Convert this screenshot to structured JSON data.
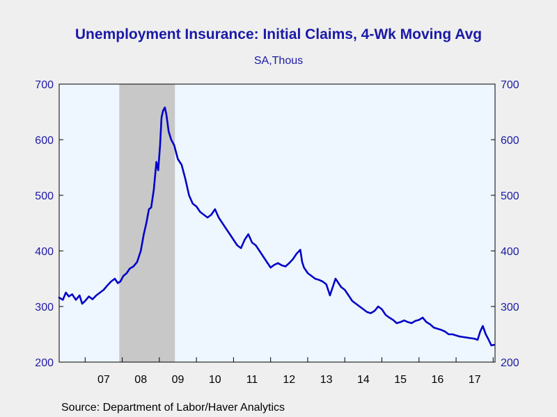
{
  "title": "Unemployment Insurance: Initial Claims, 4-Wk Moving Avg",
  "subtitle": "SA,Thous",
  "source": "Source:  Department of Labor/Haver Analytics",
  "colors": {
    "line": "#0000c8",
    "plot_bg": "#eef6ff",
    "recession": "#c8c8c8",
    "axis_text": "#1a1aa6"
  },
  "chart_data": {
    "type": "line",
    "title": "Unemployment Insurance: Initial Claims, 4-Wk Moving Avg",
    "subtitle": "SA,Thous",
    "ylim": [
      200,
      700
    ],
    "yticks": [
      200,
      300,
      400,
      500,
      600,
      700
    ],
    "y_axes": "left-and-right",
    "xlim": [
      2006.3,
      2018.05
    ],
    "xtick_labels": [
      "07",
      "08",
      "09",
      "10",
      "11",
      "12",
      "13",
      "14",
      "15",
      "16",
      "17"
    ],
    "xtick_label_years": [
      2007,
      2008,
      2009,
      2010,
      2011,
      2012,
      2013,
      2014,
      2015,
      2016,
      2017
    ],
    "grid": false,
    "legend": "none",
    "shaded_regions": [
      {
        "label": "recession",
        "start": 2007.92,
        "end": 2009.42
      }
    ],
    "series": [
      {
        "x": [
          2006.3,
          2006.4,
          2006.48,
          2006.56,
          2006.65,
          2006.75,
          2006.85,
          2006.92,
          2007.0,
          2007.1,
          2007.2,
          2007.3,
          2007.4,
          2007.5,
          2007.6,
          2007.7,
          2007.8,
          2007.88,
          2007.95,
          2008.03,
          2008.12,
          2008.2,
          2008.3,
          2008.4,
          2008.5,
          2008.58,
          2008.65,
          2008.72,
          2008.78,
          2008.85,
          2008.92,
          2008.97,
          2009.02,
          2009.06,
          2009.1,
          2009.15,
          2009.19,
          2009.25,
          2009.32,
          2009.4,
          2009.5,
          2009.6,
          2009.7,
          2009.8,
          2009.9,
          2010.0,
          2010.1,
          2010.2,
          2010.3,
          2010.4,
          2010.5,
          2010.6,
          2010.7,
          2010.8,
          2010.9,
          2011.0,
          2011.1,
          2011.2,
          2011.3,
          2011.4,
          2011.5,
          2011.6,
          2011.7,
          2011.8,
          2011.9,
          2012.0,
          2012.1,
          2012.2,
          2012.3,
          2012.4,
          2012.5,
          2012.6,
          2012.7,
          2012.8,
          2012.85,
          2012.9,
          2013.0,
          2013.1,
          2013.2,
          2013.3,
          2013.4,
          2013.5,
          2013.6,
          2013.75,
          2013.8,
          2013.9,
          2014.0,
          2014.1,
          2014.2,
          2014.3,
          2014.4,
          2014.5,
          2014.6,
          2014.7,
          2014.8,
          2014.9,
          2015.0,
          2015.1,
          2015.2,
          2015.3,
          2015.4,
          2015.5,
          2015.6,
          2015.7,
          2015.8,
          2015.9,
          2016.0,
          2016.1,
          2016.2,
          2016.3,
          2016.4,
          2016.5,
          2016.6,
          2016.7,
          2016.8,
          2016.9,
          2017.0,
          2017.1,
          2017.2,
          2017.3,
          2017.4,
          2017.5,
          2017.58,
          2017.65,
          2017.72,
          2017.8,
          2017.88,
          2017.95,
          2018.02
        ],
        "values": [
          316,
          312,
          325,
          318,
          322,
          312,
          320,
          305,
          310,
          318,
          313,
          320,
          325,
          330,
          338,
          345,
          350,
          342,
          345,
          355,
          360,
          368,
          372,
          380,
          400,
          430,
          450,
          475,
          478,
          510,
          560,
          545,
          590,
          640,
          652,
          658,
          645,
          615,
          600,
          590,
          565,
          555,
          530,
          500,
          485,
          480,
          470,
          465,
          460,
          465,
          475,
          460,
          450,
          440,
          430,
          420,
          410,
          405,
          420,
          430,
          415,
          410,
          400,
          390,
          380,
          370,
          375,
          378,
          374,
          372,
          378,
          385,
          395,
          402,
          380,
          370,
          360,
          355,
          350,
          348,
          345,
          340,
          320,
          350,
          345,
          335,
          330,
          320,
          310,
          305,
          300,
          295,
          290,
          288,
          292,
          300,
          295,
          285,
          280,
          276,
          270,
          272,
          275,
          272,
          270,
          274,
          276,
          280,
          272,
          268,
          262,
          260,
          258,
          255,
          250,
          250,
          248,
          246,
          245,
          244,
          243,
          242,
          240,
          255,
          265,
          250,
          240,
          230,
          231
        ]
      }
    ]
  }
}
